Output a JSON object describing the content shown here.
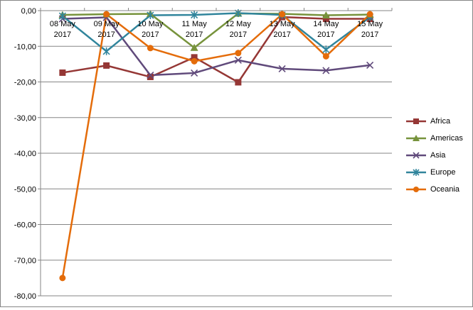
{
  "chart_data": {
    "type": "line",
    "title": "",
    "xlabel": "",
    "ylabel": "",
    "ylim": [
      -80,
      0
    ],
    "yticks": [
      0,
      -10,
      -20,
      -30,
      -40,
      -50,
      -60,
      -70,
      -80
    ],
    "ytick_labels": [
      "0,00",
      "-10,00",
      "-20,00",
      "-30,00",
      "-40,00",
      "-50,00",
      "-60,00",
      "-70,00",
      "-80,00"
    ],
    "categories": [
      [
        "08 May",
        "2017"
      ],
      [
        "09 May",
        "2017"
      ],
      [
        "10 May",
        "2017"
      ],
      [
        "11 May",
        "2017"
      ],
      [
        "12 May",
        "2017"
      ],
      [
        "13 May",
        "2017"
      ],
      [
        "14 May",
        "2017"
      ],
      [
        "15 May",
        "2017"
      ]
    ],
    "grid": true,
    "legend_position": "right",
    "series": [
      {
        "name": "Africa",
        "color": "#953735",
        "marker": "square",
        "values": [
          -17.4,
          -15.4,
          -18.6,
          -13.1,
          -20.1,
          -1.8,
          -2.3,
          -2.3
        ]
      },
      {
        "name": "Americas",
        "color": "#77933C",
        "marker": "triangle",
        "values": [
          -1.2,
          -1.0,
          -0.9,
          -10.4,
          -0.8,
          -0.9,
          -1.3,
          -1.1
        ]
      },
      {
        "name": "Asia",
        "color": "#604A7B",
        "marker": "x",
        "values": [
          -2.3,
          -1.9,
          -18.1,
          -17.5,
          -13.9,
          -16.3,
          -16.8,
          -15.3
        ]
      },
      {
        "name": "Europe",
        "color": "#31859C",
        "marker": "star",
        "values": [
          -1.5,
          -11.4,
          -1.3,
          -1.2,
          -0.7,
          -1.2,
          -10.9,
          -1.8
        ]
      },
      {
        "name": "Oceania",
        "color": "#E46C0A",
        "marker": "circle",
        "values": [
          -75.0,
          -1.0,
          -10.5,
          -14.2,
          -11.9,
          -1.0,
          -12.8,
          -1.0
        ]
      }
    ]
  }
}
